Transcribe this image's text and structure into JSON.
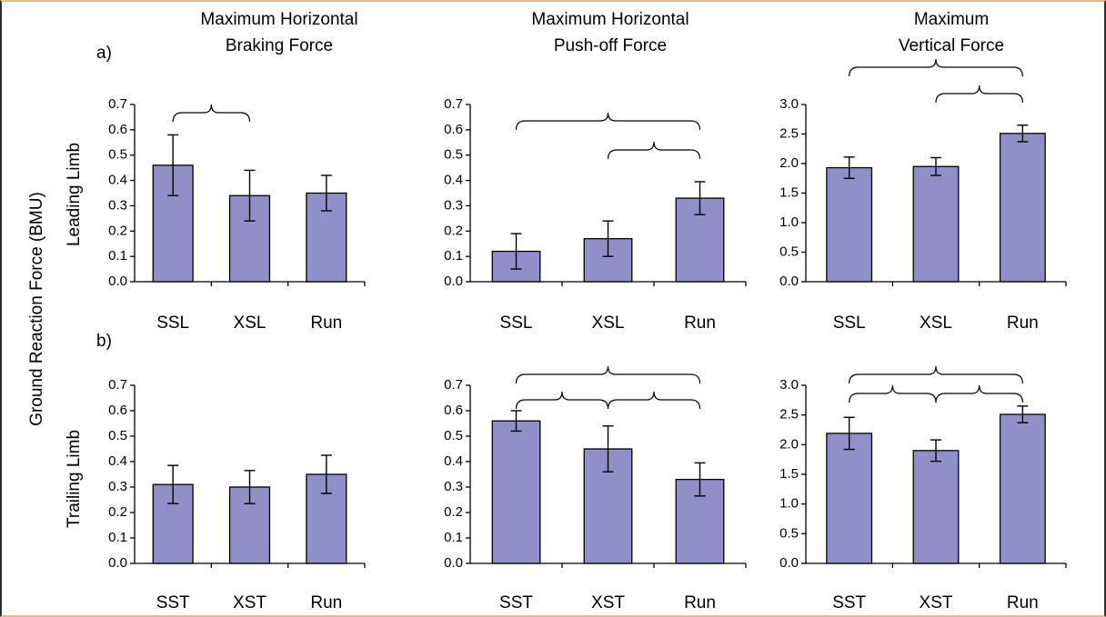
{
  "column_titles": [
    [
      "Maximum Horizontal",
      "Braking Force"
    ],
    [
      "Maximum Horizontal",
      "Push-off Force"
    ],
    [
      "Maximum",
      "Vertical Force"
    ]
  ],
  "y_axis_label": "Ground Reaction Force (BMU)",
  "row_labels": [
    "Leading Limb",
    "Trailing Limb"
  ],
  "row_panel_letters": [
    "a)",
    "b)"
  ],
  "colors": {
    "bar_fill": "#9090c8",
    "frame_accent": "#e9b98c"
  },
  "chart_data": [
    {
      "type": "bar",
      "row": 0,
      "col": 0,
      "categories": [
        "SSL",
        "XSL",
        "Run"
      ],
      "values": [
        0.46,
        0.34,
        0.35
      ],
      "errors": [
        0.12,
        0.1,
        0.07
      ],
      "ylim": [
        0,
        0.7
      ],
      "yticks": [
        "0.0",
        "0.1",
        "0.2",
        "0.3",
        "0.4",
        "0.5",
        "0.6",
        "0.7"
      ],
      "brackets": [
        [
          0,
          1
        ]
      ]
    },
    {
      "type": "bar",
      "row": 0,
      "col": 1,
      "categories": [
        "SSL",
        "XSL",
        "Run"
      ],
      "values": [
        0.12,
        0.17,
        0.33
      ],
      "errors": [
        0.07,
        0.07,
        0.065
      ],
      "ylim": [
        0,
        0.7
      ],
      "yticks": [
        "0.0",
        "0.1",
        "0.2",
        "0.3",
        "0.4",
        "0.5",
        "0.6",
        "0.7"
      ],
      "brackets": [
        [
          0,
          2
        ],
        [
          1,
          2
        ]
      ]
    },
    {
      "type": "bar",
      "row": 0,
      "col": 2,
      "categories": [
        "SSL",
        "XSL",
        "Run"
      ],
      "values": [
        1.93,
        1.95,
        2.51
      ],
      "errors": [
        0.18,
        0.15,
        0.14
      ],
      "ylim": [
        0,
        3.0
      ],
      "yticks": [
        "0.0",
        "0.5",
        "1.0",
        "1.5",
        "2.0",
        "2.5",
        "3.0"
      ],
      "brackets": [
        [
          0,
          2
        ],
        [
          1,
          2
        ]
      ]
    },
    {
      "type": "bar",
      "row": 1,
      "col": 0,
      "categories": [
        "SST",
        "XST",
        "Run"
      ],
      "values": [
        0.31,
        0.3,
        0.35
      ],
      "errors": [
        0.075,
        0.065,
        0.075
      ],
      "ylim": [
        0,
        0.7
      ],
      "yticks": [
        "0.0",
        "0.1",
        "0.2",
        "0.3",
        "0.4",
        "0.5",
        "0.6",
        "0.7"
      ],
      "brackets": []
    },
    {
      "type": "bar",
      "row": 1,
      "col": 1,
      "categories": [
        "SST",
        "XST",
        "Run"
      ],
      "values": [
        0.56,
        0.45,
        0.33
      ],
      "errors": [
        0.04,
        0.09,
        0.065
      ],
      "ylim": [
        0,
        0.7
      ],
      "yticks": [
        "0.0",
        "0.1",
        "0.2",
        "0.3",
        "0.4",
        "0.5",
        "0.6",
        "0.7"
      ],
      "brackets": [
        [
          0,
          2
        ],
        [
          0,
          1
        ],
        [
          1,
          2
        ]
      ]
    },
    {
      "type": "bar",
      "row": 1,
      "col": 2,
      "categories": [
        "SST",
        "XST",
        "Run"
      ],
      "values": [
        2.19,
        1.9,
        2.51
      ],
      "errors": [
        0.27,
        0.18,
        0.14
      ],
      "ylim": [
        0,
        3.0
      ],
      "yticks": [
        "0.0",
        "0.5",
        "1.0",
        "1.5",
        "2.0",
        "2.5",
        "3.0"
      ],
      "brackets": [
        [
          0,
          2
        ],
        [
          0,
          1
        ],
        [
          1,
          2
        ]
      ]
    }
  ]
}
